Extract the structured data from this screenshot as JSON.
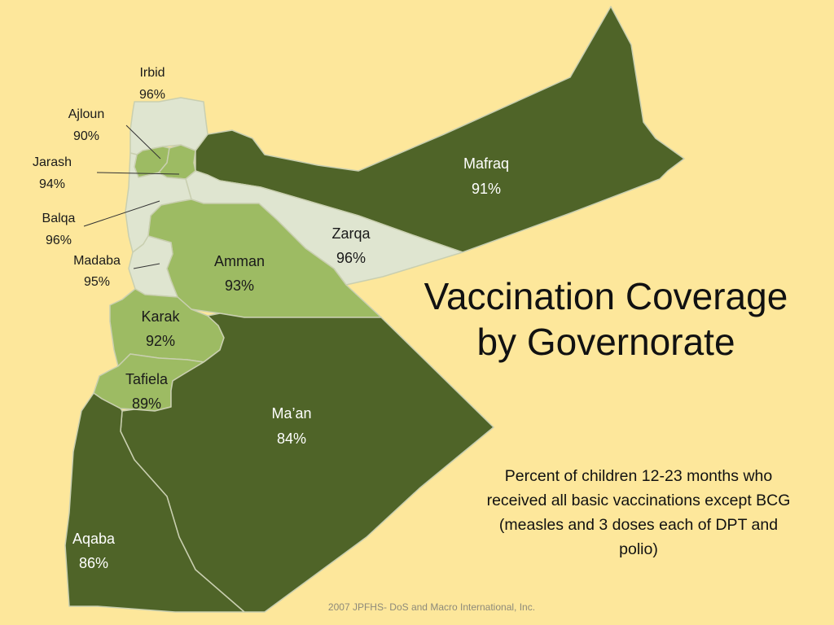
{
  "title_lines": [
    "Vaccination Coverage",
    "by Governorate"
  ],
  "subtitle": "Percent of children 12-23 months who received all basic vaccinations except BCG (measles and 3 doses each of DPT and polio)",
  "source": "2007 JPFHS- DoS and Macro International, Inc.",
  "colors": {
    "background": "#fde79b",
    "high": "#dfe5d0",
    "medium": "#9dbb63",
    "low": "#4f6428"
  },
  "regions": [
    {
      "id": "irbid",
      "name": "Irbid",
      "value": "96%",
      "coverage": 96,
      "color": "#dfe5d0"
    },
    {
      "id": "ajloun",
      "name": "Ajloun",
      "value": "90%",
      "coverage": 90,
      "color": "#9dbb63"
    },
    {
      "id": "jarash",
      "name": "Jarash",
      "value": "94%",
      "coverage": 94,
      "color": "#9dbb63"
    },
    {
      "id": "balqa",
      "name": "Balqa",
      "value": "96%",
      "coverage": 96,
      "color": "#dfe5d0"
    },
    {
      "id": "madaba",
      "name": "Madaba",
      "value": "95%",
      "coverage": 95,
      "color": "#dfe5d0"
    },
    {
      "id": "amman",
      "name": "Amman",
      "value": "93%",
      "coverage": 93,
      "color": "#9dbb63"
    },
    {
      "id": "zarqa",
      "name": "Zarqa",
      "value": "96%",
      "coverage": 96,
      "color": "#dfe5d0"
    },
    {
      "id": "mafraq",
      "name": "Mafraq",
      "value": "91%",
      "coverage": 91,
      "color": "#4f6428"
    },
    {
      "id": "karak",
      "name": "Karak",
      "value": "92%",
      "coverage": 92,
      "color": "#9dbb63"
    },
    {
      "id": "tafiela",
      "name": "Tafiela",
      "value": "89%",
      "coverage": 89,
      "color": "#9dbb63"
    },
    {
      "id": "maan",
      "name": "Ma’an",
      "value": "84%",
      "coverage": 84,
      "color": "#4f6428"
    },
    {
      "id": "aqaba",
      "name": "Aqaba",
      "value": "86%",
      "coverage": 86,
      "color": "#4f6428"
    }
  ]
}
